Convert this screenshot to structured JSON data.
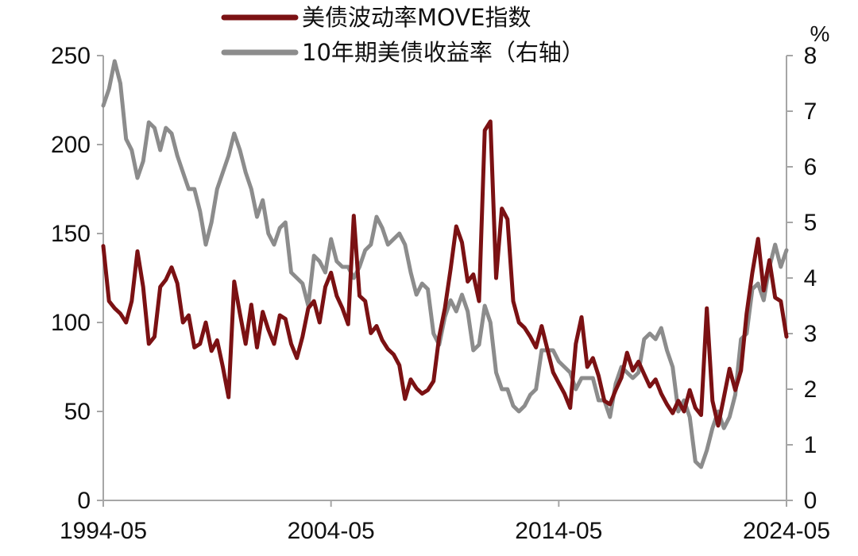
{
  "chart_data": {
    "type": "line",
    "x_ticks": [
      "1994-05",
      "2004-05",
      "2014-05",
      "2024-05"
    ],
    "x_range": [
      "1994-05",
      "2024-05"
    ],
    "y_left": {
      "ticks": [
        "0",
        "50",
        "100",
        "150",
        "200",
        "250"
      ],
      "range": [
        0,
        250
      ]
    },
    "y_right": {
      "ticks": [
        "0",
        "1",
        "2",
        "3",
        "4",
        "5",
        "6",
        "7",
        "8"
      ],
      "range": [
        0,
        8
      ],
      "unit": "%"
    },
    "legend_placement": "top-center",
    "grid": false,
    "series": [
      {
        "name": "美债波动率MOVE指数",
        "axis": "left",
        "color": "#7b1113",
        "points": [
          [
            "1994-05",
            143
          ],
          [
            "1994-08",
            112
          ],
          [
            "1994-11",
            108
          ],
          [
            "1995-02",
            105
          ],
          [
            "1995-05",
            100
          ],
          [
            "1995-08",
            112
          ],
          [
            "1995-11",
            140
          ],
          [
            "1996-02",
            120
          ],
          [
            "1996-05",
            88
          ],
          [
            "1996-08",
            92
          ],
          [
            "1996-11",
            120
          ],
          [
            "1997-02",
            124
          ],
          [
            "1997-05",
            131
          ],
          [
            "1997-08",
            122
          ],
          [
            "1997-11",
            100
          ],
          [
            "1998-02",
            104
          ],
          [
            "1998-05",
            86
          ],
          [
            "1998-08",
            88
          ],
          [
            "1998-11",
            100
          ],
          [
            "1999-02",
            84
          ],
          [
            "1999-05",
            90
          ],
          [
            "1999-08",
            75
          ],
          [
            "1999-11",
            58
          ],
          [
            "2000-02",
            123
          ],
          [
            "2000-05",
            105
          ],
          [
            "2000-08",
            88
          ],
          [
            "2000-11",
            110
          ],
          [
            "2001-02",
            86
          ],
          [
            "2001-05",
            106
          ],
          [
            "2001-08",
            96
          ],
          [
            "2001-11",
            88
          ],
          [
            "2002-02",
            104
          ],
          [
            "2002-05",
            102
          ],
          [
            "2002-08",
            88
          ],
          [
            "2002-11",
            80
          ],
          [
            "2003-02",
            92
          ],
          [
            "2003-05",
            108
          ],
          [
            "2003-08",
            112
          ],
          [
            "2003-11",
            100
          ],
          [
            "2004-02",
            120
          ],
          [
            "2004-05",
            128
          ],
          [
            "2004-08",
            115
          ],
          [
            "2004-11",
            108
          ],
          [
            "2005-02",
            99
          ],
          [
            "2005-05",
            160
          ],
          [
            "2005-08",
            115
          ],
          [
            "2005-11",
            112
          ],
          [
            "2006-02",
            94
          ],
          [
            "2006-05",
            98
          ],
          [
            "2006-08",
            90
          ],
          [
            "2006-11",
            85
          ],
          [
            "2007-02",
            82
          ],
          [
            "2007-05",
            76
          ],
          [
            "2007-08",
            57
          ],
          [
            "2007-11",
            68
          ],
          [
            "2008-02",
            63
          ],
          [
            "2008-05",
            60
          ],
          [
            "2008-08",
            62
          ],
          [
            "2008-11",
            67
          ],
          [
            "2009-02",
            92
          ],
          [
            "2009-05",
            108
          ],
          [
            "2009-08",
            130
          ],
          [
            "2009-11",
            154
          ],
          [
            "2010-02",
            145
          ],
          [
            "2010-05",
            123
          ],
          [
            "2010-08",
            127
          ],
          [
            "2010-11",
            112
          ],
          [
            "2011-02",
            208
          ],
          [
            "2011-05",
            213
          ],
          [
            "2011-08",
            125
          ],
          [
            "2011-11",
            164
          ],
          [
            "2012-02",
            158
          ],
          [
            "2012-05",
            112
          ],
          [
            "2012-08",
            100
          ],
          [
            "2012-11",
            97
          ],
          [
            "2013-02",
            92
          ],
          [
            "2013-05",
            86
          ],
          [
            "2013-08",
            98
          ],
          [
            "2013-11",
            85
          ],
          [
            "2014-02",
            72
          ],
          [
            "2014-05",
            66
          ],
          [
            "2014-08",
            60
          ],
          [
            "2014-11",
            52
          ],
          [
            "2015-02",
            88
          ],
          [
            "2015-05",
            103
          ],
          [
            "2015-08",
            75
          ],
          [
            "2015-11",
            80
          ],
          [
            "2016-02",
            70
          ],
          [
            "2016-05",
            56
          ],
          [
            "2016-08",
            54
          ],
          [
            "2016-11",
            62
          ],
          [
            "2017-02",
            69
          ],
          [
            "2017-05",
            83
          ],
          [
            "2017-08",
            73
          ],
          [
            "2017-11",
            78
          ],
          [
            "2018-02",
            71
          ],
          [
            "2018-05",
            64
          ],
          [
            "2018-08",
            68
          ],
          [
            "2018-11",
            60
          ],
          [
            "2019-02",
            54
          ],
          [
            "2019-05",
            49
          ],
          [
            "2019-08",
            56
          ],
          [
            "2019-11",
            50
          ],
          [
            "2020-02",
            62
          ],
          [
            "2020-05",
            52
          ],
          [
            "2020-08",
            48
          ],
          [
            "2020-11",
            108
          ],
          [
            "2021-02",
            56
          ],
          [
            "2021-05",
            42
          ],
          [
            "2021-08",
            58
          ],
          [
            "2021-11",
            74
          ],
          [
            "2022-02",
            62
          ],
          [
            "2022-05",
            73
          ],
          [
            "2022-08",
            105
          ],
          [
            "2022-11",
            128
          ],
          [
            "2023-02",
            147
          ],
          [
            "2023-05",
            118
          ],
          [
            "2023-08",
            135
          ],
          [
            "2023-11",
            114
          ],
          [
            "2024-02",
            112
          ],
          [
            "2024-05",
            92
          ]
        ]
      },
      {
        "name": "10年期美债收益率（右轴）",
        "axis": "right",
        "color": "#8c8c8c",
        "points": [
          [
            "1994-05",
            7.1
          ],
          [
            "1994-08",
            7.4
          ],
          [
            "1994-11",
            7.9
          ],
          [
            "1995-02",
            7.5
          ],
          [
            "1995-05",
            6.5
          ],
          [
            "1995-08",
            6.3
          ],
          [
            "1995-11",
            5.8
          ],
          [
            "1996-02",
            6.1
          ],
          [
            "1996-05",
            6.8
          ],
          [
            "1996-08",
            6.7
          ],
          [
            "1996-11",
            6.3
          ],
          [
            "1997-02",
            6.7
          ],
          [
            "1997-05",
            6.6
          ],
          [
            "1997-08",
            6.2
          ],
          [
            "1997-11",
            5.9
          ],
          [
            "1998-02",
            5.6
          ],
          [
            "1998-05",
            5.6
          ],
          [
            "1998-08",
            5.2
          ],
          [
            "1998-11",
            4.6
          ],
          [
            "1999-02",
            5.0
          ],
          [
            "1999-05",
            5.6
          ],
          [
            "1999-08",
            5.9
          ],
          [
            "1999-11",
            6.2
          ],
          [
            "2000-02",
            6.6
          ],
          [
            "2000-05",
            6.3
          ],
          [
            "2000-08",
            5.9
          ],
          [
            "2000-11",
            5.6
          ],
          [
            "2001-02",
            5.1
          ],
          [
            "2001-05",
            5.4
          ],
          [
            "2001-08",
            4.8
          ],
          [
            "2001-11",
            4.6
          ],
          [
            "2002-02",
            4.9
          ],
          [
            "2002-05",
            5.0
          ],
          [
            "2002-08",
            4.1
          ],
          [
            "2002-11",
            4.0
          ],
          [
            "2003-02",
            3.9
          ],
          [
            "2003-05",
            3.5
          ],
          [
            "2003-08",
            4.4
          ],
          [
            "2003-11",
            4.3
          ],
          [
            "2004-02",
            4.1
          ],
          [
            "2004-05",
            4.7
          ],
          [
            "2004-08",
            4.3
          ],
          [
            "2004-11",
            4.2
          ],
          [
            "2005-02",
            4.2
          ],
          [
            "2005-05",
            4.0
          ],
          [
            "2005-08",
            4.2
          ],
          [
            "2005-11",
            4.5
          ],
          [
            "2006-02",
            4.6
          ],
          [
            "2006-05",
            5.1
          ],
          [
            "2006-08",
            4.9
          ],
          [
            "2006-11",
            4.6
          ],
          [
            "2007-02",
            4.7
          ],
          [
            "2007-05",
            4.8
          ],
          [
            "2007-08",
            4.6
          ],
          [
            "2007-11",
            4.1
          ],
          [
            "2008-02",
            3.7
          ],
          [
            "2008-05",
            3.9
          ],
          [
            "2008-08",
            3.8
          ],
          [
            "2008-11",
            3.0
          ],
          [
            "2009-02",
            2.8
          ],
          [
            "2009-05",
            3.3
          ],
          [
            "2009-08",
            3.6
          ],
          [
            "2009-11",
            3.4
          ],
          [
            "2010-02",
            3.7
          ],
          [
            "2010-05",
            3.4
          ],
          [
            "2010-08",
            2.7
          ],
          [
            "2010-11",
            2.8
          ],
          [
            "2011-02",
            3.5
          ],
          [
            "2011-05",
            3.2
          ],
          [
            "2011-08",
            2.3
          ],
          [
            "2011-11",
            2.0
          ],
          [
            "2012-02",
            2.0
          ],
          [
            "2012-05",
            1.7
          ],
          [
            "2012-08",
            1.6
          ],
          [
            "2012-11",
            1.7
          ],
          [
            "2013-02",
            1.9
          ],
          [
            "2013-05",
            2.0
          ],
          [
            "2013-08",
            2.7
          ],
          [
            "2013-11",
            2.7
          ],
          [
            "2014-02",
            2.7
          ],
          [
            "2014-05",
            2.5
          ],
          [
            "2014-08",
            2.4
          ],
          [
            "2014-11",
            2.3
          ],
          [
            "2015-02",
            2.0
          ],
          [
            "2015-05",
            2.2
          ],
          [
            "2015-08",
            2.2
          ],
          [
            "2015-11",
            2.2
          ],
          [
            "2016-02",
            1.8
          ],
          [
            "2016-05",
            1.8
          ],
          [
            "2016-08",
            1.5
          ],
          [
            "2016-11",
            2.1
          ],
          [
            "2017-02",
            2.4
          ],
          [
            "2017-05",
            2.3
          ],
          [
            "2017-08",
            2.2
          ],
          [
            "2017-11",
            2.3
          ],
          [
            "2018-02",
            2.9
          ],
          [
            "2018-05",
            3.0
          ],
          [
            "2018-08",
            2.9
          ],
          [
            "2018-11",
            3.1
          ],
          [
            "2019-02",
            2.7
          ],
          [
            "2019-05",
            2.4
          ],
          [
            "2019-08",
            1.6
          ],
          [
            "2019-11",
            1.8
          ],
          [
            "2020-02",
            1.5
          ],
          [
            "2020-05",
            0.7
          ],
          [
            "2020-08",
            0.6
          ],
          [
            "2020-11",
            0.9
          ],
          [
            "2021-02",
            1.3
          ],
          [
            "2021-05",
            1.6
          ],
          [
            "2021-08",
            1.3
          ],
          [
            "2021-11",
            1.5
          ],
          [
            "2022-02",
            1.9
          ],
          [
            "2022-05",
            2.9
          ],
          [
            "2022-08",
            3.0
          ],
          [
            "2022-11",
            3.8
          ],
          [
            "2023-02",
            3.9
          ],
          [
            "2023-05",
            3.6
          ],
          [
            "2023-08",
            4.2
          ],
          [
            "2023-11",
            4.6
          ],
          [
            "2024-02",
            4.2
          ],
          [
            "2024-05",
            4.5
          ]
        ]
      }
    ]
  }
}
